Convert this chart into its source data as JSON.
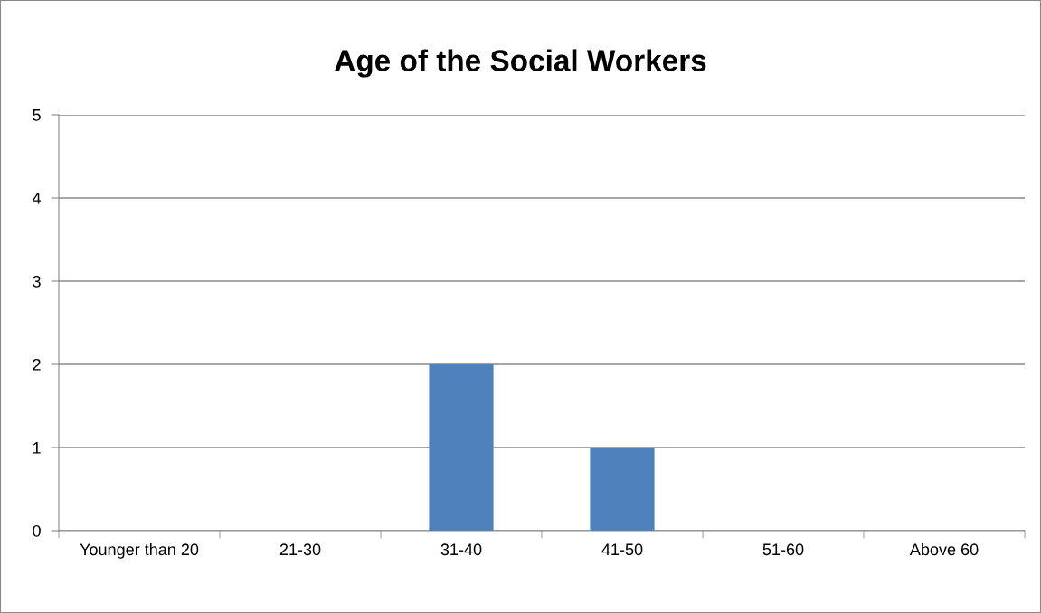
{
  "chart_data": {
    "type": "bar",
    "title": "Age of the Social Workers",
    "categories": [
      "Younger than 20",
      "21-30",
      "31-40",
      "41-50",
      "51-60",
      "Above 60"
    ],
    "values": [
      0,
      0,
      2,
      1,
      0,
      0
    ],
    "color": "#4f81bd",
    "ylim": [
      0,
      5
    ],
    "yticks": [
      0,
      1,
      2,
      3,
      4,
      5
    ],
    "grid": "y",
    "legend": false
  }
}
